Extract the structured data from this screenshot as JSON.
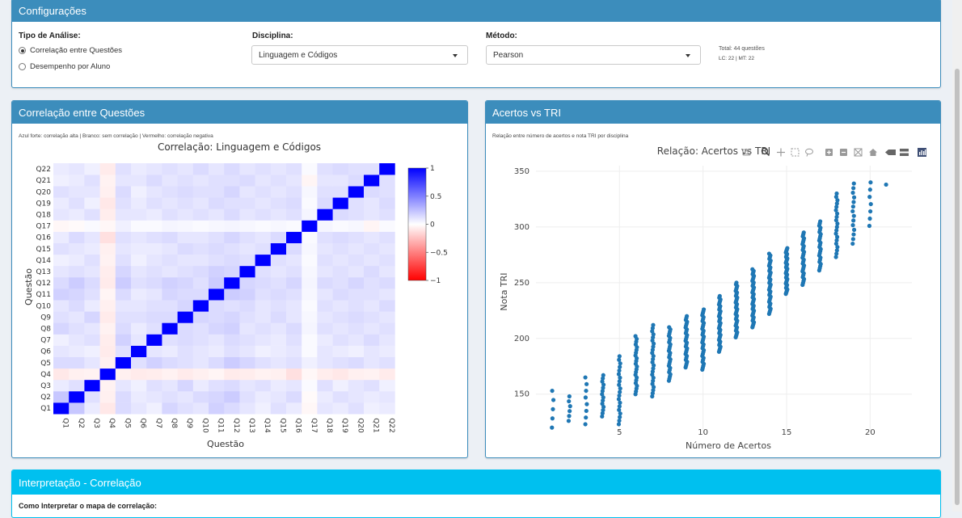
{
  "settings": {
    "title": "Configurações",
    "analysis_label": "Tipo de Análise:",
    "analysis_options": [
      "Correlação entre Questões",
      "Desempenho por Aluno"
    ],
    "discipline_label": "Disciplina:",
    "discipline_value": "Linguagem e Códigos",
    "method_label": "Método:",
    "method_value": "Pearson",
    "total": "Total: 44 questões",
    "breakdown": "LC: 22 | MT: 22"
  },
  "correlation_panel": {
    "title": "Correlação entre Questões",
    "note": "Azul forte: correlação alta | Branco: sem correlação | Vermelho: correlação negativa"
  },
  "scatter_panel": {
    "title": "Acertos vs TRI",
    "note": "Relação entre número de acertos e nota TRI por disciplina"
  },
  "interpretation": {
    "title": "Interpretação - Correlação",
    "subtitle": "Como Interpretar o mapa de correlação:"
  },
  "colors": {
    "header": "#3c8dbc",
    "info_header": "#00c0ef",
    "point": "#1f77b4"
  },
  "chart_data": [
    {
      "type": "heatmap",
      "title": "Correlação: Linguagem e Códigos",
      "xlabel": "Questão",
      "ylabel": "Questão",
      "categories": [
        "Q1",
        "Q2",
        "Q3",
        "Q4",
        "Q5",
        "Q6",
        "Q7",
        "Q8",
        "Q9",
        "Q10",
        "Q11",
        "Q12",
        "Q13",
        "Q14",
        "Q15",
        "Q16",
        "Q17",
        "Q18",
        "Q19",
        "Q20",
        "Q21",
        "Q22"
      ],
      "colorscale": {
        "min": -1,
        "max": 1,
        "ticks": [
          1,
          0.5,
          0,
          -0.5,
          -1
        ],
        "tick_labels": [
          "1",
          "0.5",
          "0",
          "−0.5",
          "−1"
        ]
      },
      "weak_questions": [
        "Q4",
        "Q17"
      ],
      "matrix": [
        [
          1,
          0.22,
          0.08,
          -0.09,
          0.14,
          0.1,
          0.06,
          0.16,
          0.12,
          0.1,
          0.18,
          0.14,
          0.1,
          0.06,
          0.12,
          0.08,
          -0.03,
          0.1,
          0.08,
          0.12,
          0.06,
          0.08
        ],
        [
          0.22,
          1,
          0.12,
          -0.06,
          0.14,
          0.08,
          0.1,
          0.12,
          0.1,
          0.14,
          0.16,
          0.2,
          0.12,
          0.08,
          0.1,
          0.14,
          -0.02,
          0.08,
          0.12,
          0.1,
          0.08,
          0.1
        ],
        [
          0.08,
          0.12,
          1,
          -0.05,
          0.1,
          0.06,
          0.12,
          0.1,
          0.16,
          0.08,
          0.12,
          0.14,
          0.1,
          0.12,
          0.08,
          0.1,
          0.02,
          0.12,
          0.06,
          0.1,
          0.12,
          0.06
        ],
        [
          -0.09,
          -0.06,
          -0.05,
          1,
          -0.06,
          -0.08,
          -0.07,
          -0.05,
          -0.08,
          -0.06,
          -0.04,
          -0.08,
          -0.07,
          -0.05,
          -0.06,
          -0.12,
          -0.03,
          -0.07,
          -0.09,
          -0.06,
          -0.05,
          -0.08
        ],
        [
          0.14,
          0.14,
          0.1,
          -0.06,
          1,
          0.12,
          0.18,
          0.14,
          0.12,
          0.1,
          0.14,
          0.2,
          0.16,
          0.12,
          0.1,
          0.12,
          0.06,
          0.1,
          0.12,
          0.14,
          0.1,
          0.12
        ],
        [
          0.1,
          0.08,
          0.06,
          -0.08,
          0.12,
          1,
          0.1,
          0.08,
          0.12,
          0.1,
          0.08,
          0.12,
          0.1,
          0.06,
          0.08,
          0.1,
          0.02,
          0.1,
          0.08,
          0.06,
          0.1,
          0.08
        ],
        [
          0.06,
          0.1,
          0.12,
          -0.07,
          0.18,
          0.1,
          1,
          0.12,
          0.14,
          0.12,
          0.1,
          0.14,
          0.12,
          0.1,
          0.08,
          0.12,
          0.02,
          0.08,
          0.12,
          0.1,
          0.14,
          0.1
        ],
        [
          0.16,
          0.12,
          0.1,
          -0.05,
          0.14,
          0.08,
          0.12,
          1,
          0.14,
          0.12,
          0.16,
          0.18,
          0.1,
          0.12,
          0.1,
          0.14,
          0.04,
          0.12,
          0.1,
          0.12,
          0.1,
          0.12
        ],
        [
          0.12,
          0.1,
          0.16,
          -0.08,
          0.12,
          0.12,
          0.14,
          0.14,
          1,
          0.16,
          0.14,
          0.16,
          0.12,
          0.1,
          0.14,
          0.1,
          0.03,
          0.1,
          0.12,
          0.14,
          0.12,
          0.1
        ],
        [
          0.1,
          0.14,
          0.08,
          -0.06,
          0.1,
          0.1,
          0.12,
          0.12,
          0.16,
          1,
          0.14,
          0.12,
          0.14,
          0.1,
          0.12,
          0.1,
          0.02,
          0.12,
          0.1,
          0.12,
          0.1,
          0.14
        ],
        [
          0.18,
          0.16,
          0.12,
          -0.04,
          0.14,
          0.08,
          0.1,
          0.16,
          0.14,
          0.14,
          1,
          0.2,
          0.18,
          0.12,
          0.14,
          0.12,
          0.03,
          0.1,
          0.14,
          0.12,
          0.12,
          0.1
        ],
        [
          0.14,
          0.2,
          0.14,
          -0.08,
          0.2,
          0.12,
          0.14,
          0.18,
          0.16,
          0.12,
          0.2,
          1,
          0.16,
          0.14,
          0.12,
          0.16,
          0.04,
          0.14,
          0.12,
          0.16,
          0.12,
          0.14
        ],
        [
          0.1,
          0.12,
          0.1,
          -0.07,
          0.16,
          0.1,
          0.12,
          0.1,
          0.12,
          0.14,
          0.18,
          0.16,
          1,
          0.12,
          0.1,
          0.12,
          0.03,
          0.1,
          0.12,
          0.1,
          0.14,
          0.1
        ],
        [
          0.06,
          0.08,
          0.12,
          -0.05,
          0.12,
          0.06,
          0.1,
          0.12,
          0.1,
          0.1,
          0.12,
          0.14,
          0.12,
          1,
          0.12,
          0.1,
          0.02,
          0.12,
          0.1,
          0.12,
          0.1,
          0.12
        ],
        [
          0.12,
          0.1,
          0.08,
          -0.06,
          0.1,
          0.08,
          0.08,
          0.1,
          0.14,
          0.12,
          0.14,
          0.12,
          0.1,
          0.12,
          1,
          0.14,
          0.03,
          0.1,
          0.12,
          0.1,
          0.12,
          0.1
        ],
        [
          0.08,
          0.14,
          0.1,
          -0.12,
          0.12,
          0.1,
          0.12,
          0.14,
          0.1,
          0.1,
          0.12,
          0.16,
          0.12,
          0.1,
          0.14,
          1,
          0.02,
          0.12,
          0.14,
          0.12,
          0.1,
          0.12
        ],
        [
          -0.03,
          -0.02,
          0.02,
          -0.03,
          0.06,
          0.02,
          0.02,
          0.04,
          0.03,
          0.02,
          0.03,
          0.04,
          0.03,
          0.02,
          0.03,
          0.02,
          1,
          0.04,
          0.02,
          0.03,
          -0.04,
          0.02
        ],
        [
          0.1,
          0.08,
          0.12,
          -0.07,
          0.1,
          0.1,
          0.08,
          0.12,
          0.1,
          0.12,
          0.1,
          0.14,
          0.1,
          0.12,
          0.1,
          0.12,
          0.04,
          1,
          0.14,
          0.12,
          0.1,
          0.12
        ],
        [
          0.08,
          0.12,
          0.06,
          -0.09,
          0.12,
          0.08,
          0.12,
          0.1,
          0.12,
          0.1,
          0.14,
          0.12,
          0.12,
          0.1,
          0.12,
          0.14,
          0.02,
          0.14,
          1,
          0.12,
          0.1,
          0.14
        ],
        [
          0.12,
          0.1,
          0.1,
          -0.06,
          0.14,
          0.06,
          0.1,
          0.12,
          0.14,
          0.12,
          0.12,
          0.16,
          0.1,
          0.12,
          0.1,
          0.12,
          0.03,
          0.12,
          0.12,
          1,
          0.14,
          0.12
        ],
        [
          0.06,
          0.08,
          0.12,
          -0.05,
          0.1,
          0.1,
          0.14,
          0.1,
          0.12,
          0.1,
          0.12,
          0.12,
          0.14,
          0.1,
          0.12,
          0.1,
          -0.04,
          0.1,
          0.1,
          0.14,
          1,
          0.12
        ],
        [
          0.08,
          0.1,
          0.06,
          -0.08,
          0.12,
          0.08,
          0.1,
          0.12,
          0.1,
          0.14,
          0.1,
          0.14,
          0.1,
          0.12,
          0.1,
          0.12,
          0.02,
          0.12,
          0.14,
          0.12,
          0.12,
          1
        ]
      ]
    },
    {
      "type": "scatter",
      "title": "Relação: Acertos vs TRI",
      "xlabel": "Número de Acertos",
      "ylabel": "Nota TRI",
      "xlim": [
        0,
        22.5
      ],
      "ylim": [
        115,
        355
      ],
      "xticks": [
        5,
        10,
        15,
        20
      ],
      "yticks": [
        150,
        200,
        250,
        300,
        350
      ],
      "groups": [
        {
          "x": 1,
          "y_min": 120,
          "y_max": 153,
          "n": 5
        },
        {
          "x": 2,
          "y_min": 126,
          "y_max": 148,
          "n": 6
        },
        {
          "x": 3,
          "y_min": 123,
          "y_max": 165,
          "n": 8
        },
        {
          "x": 4,
          "y_min": 130,
          "y_max": 167,
          "n": 14
        },
        {
          "x": 5,
          "y_min": 123,
          "y_max": 184,
          "n": 20
        },
        {
          "x": 6,
          "y_min": 150,
          "y_max": 202,
          "n": 22
        },
        {
          "x": 7,
          "y_min": 148,
          "y_max": 212,
          "n": 24
        },
        {
          "x": 8,
          "y_min": 162,
          "y_max": 210,
          "n": 26
        },
        {
          "x": 9,
          "y_min": 174,
          "y_max": 220,
          "n": 28
        },
        {
          "x": 10,
          "y_min": 172,
          "y_max": 226,
          "n": 32
        },
        {
          "x": 11,
          "y_min": 188,
          "y_max": 238,
          "n": 34
        },
        {
          "x": 12,
          "y_min": 201,
          "y_max": 250,
          "n": 34
        },
        {
          "x": 13,
          "y_min": 210,
          "y_max": 262,
          "n": 36
        },
        {
          "x": 14,
          "y_min": 222,
          "y_max": 276,
          "n": 36
        },
        {
          "x": 15,
          "y_min": 240,
          "y_max": 281,
          "n": 32
        },
        {
          "x": 16,
          "y_min": 248,
          "y_max": 295,
          "n": 28
        },
        {
          "x": 17,
          "y_min": 261,
          "y_max": 305,
          "n": 24
        },
        {
          "x": 18,
          "y_min": 273,
          "y_max": 330,
          "n": 20
        },
        {
          "x": 19,
          "y_min": 285,
          "y_max": 339,
          "n": 14
        },
        {
          "x": 20,
          "y_min": 301,
          "y_max": 340,
          "n": 7
        },
        {
          "x": 21,
          "y_min": 338,
          "y_max": 338,
          "n": 1
        }
      ]
    }
  ]
}
